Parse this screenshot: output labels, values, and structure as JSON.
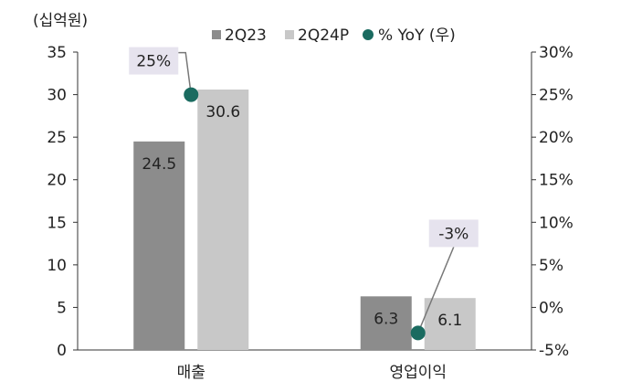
{
  "chart_data": {
    "type": "bar",
    "unit_label": "(십억원)",
    "categories": [
      "매출",
      "영업이익"
    ],
    "series": [
      {
        "name": "2Q23",
        "values": [
          24.5,
          6.3
        ],
        "color": "#8c8c8c"
      },
      {
        "name": "2Q24P",
        "values": [
          30.6,
          6.1
        ],
        "color": "#c8c8c8"
      }
    ],
    "secondary_series": {
      "name": "% YoY (우)",
      "type": "scatter",
      "values": [
        25,
        -3
      ],
      "labels": [
        "25%",
        "-3%"
      ],
      "color": "#1a6b60",
      "label_bg": "#e6e3ee"
    },
    "bar_value_labels": [
      [
        "24.5",
        "6.3"
      ],
      [
        "30.6",
        "6.1"
      ]
    ],
    "y_left": {
      "ylim": [
        0,
        35
      ],
      "ticks": [
        "0",
        "5",
        "10",
        "15",
        "20",
        "25",
        "30",
        "35"
      ]
    },
    "y_right": {
      "ylim": [
        -5,
        30
      ],
      "ticks": [
        "-5%",
        "0%",
        "5%",
        "10%",
        "15%",
        "20%",
        "25%",
        "30%"
      ]
    },
    "grid": false,
    "legend_position": "top"
  }
}
